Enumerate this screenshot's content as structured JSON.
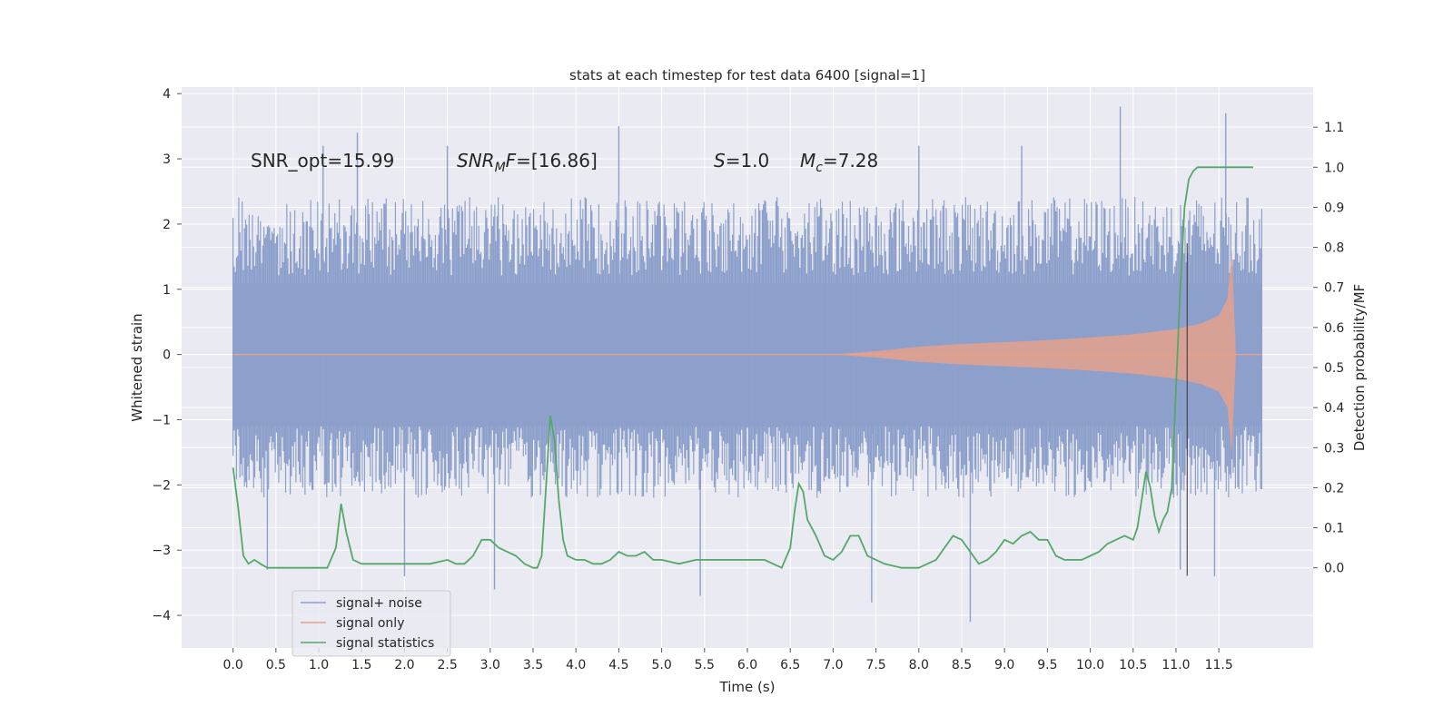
{
  "chart_data": {
    "type": "line",
    "title": "stats at each timestep for test data 6400 [signal=1]",
    "xlabel": "Time (s)",
    "ylabel": "Whitened strain",
    "y2label": "Detection probability/MF",
    "xlim": [
      -0.6,
      12.6
    ],
    "ylim": [
      -4.5,
      4.1
    ],
    "y2lim": [
      -0.2,
      1.2
    ],
    "x_ticks": [
      0.0,
      0.5,
      1.0,
      1.5,
      2.0,
      2.5,
      3.0,
      3.5,
      4.0,
      4.5,
      5.0,
      5.5,
      6.0,
      6.5,
      7.0,
      7.5,
      8.0,
      8.5,
      9.0,
      9.5,
      10.0,
      10.5,
      11.0,
      11.5
    ],
    "x_tick_labels": [
      "0.0",
      "0.5",
      "1.0",
      "1.5",
      "2.0",
      "2.5",
      "3.0",
      "3.5",
      "4.0",
      "4.5",
      "5.0",
      "5.5",
      "6.0",
      "6.5",
      "7.0",
      "7.5",
      "8.0",
      "8.5",
      "9.0",
      "9.5",
      "10.0",
      "10.5",
      "11.0",
      "11.5"
    ],
    "y_ticks": [
      -4,
      -3,
      -2,
      -1,
      0,
      1,
      2,
      3,
      4
    ],
    "y_tick_labels": [
      "−4",
      "−3",
      "−2",
      "−1",
      "0",
      "1",
      "2",
      "3",
      "4"
    ],
    "y2_ticks": [
      0.0,
      0.1,
      0.2,
      0.3,
      0.4,
      0.5,
      0.6,
      0.7,
      0.8,
      0.9,
      1.0,
      1.1
    ],
    "y2_tick_labels": [
      "0.0",
      "0.1",
      "0.2",
      "0.3",
      "0.4",
      "0.5",
      "0.6",
      "0.7",
      "0.8",
      "0.9",
      "1.0",
      "1.1"
    ],
    "grid": true,
    "legend_position": "lower-left",
    "vline_x": 11.13,
    "annotations": {
      "snr_opt": "SNR_opt=15.99",
      "snr_mf_sym": "SNR",
      "snr_mf_sub": "M",
      "snr_mf_sym2": "F",
      "snr_mf_val": "=[16.86]",
      "s_sym": "S",
      "s_val": "=1.0",
      "mc_sym": "M",
      "mc_sub": "c",
      "mc_val": "=7.28"
    },
    "series": [
      {
        "name": "signal+ noise",
        "color": "#8da0cb",
        "axis": "left",
        "kind": "noise",
        "x_range": [
          0.0,
          12.0
        ],
        "band_envelope": {
          "x": [
            0.0,
            3.0,
            6.0,
            9.0,
            12.0
          ],
          "upper": [
            2.2,
            2.2,
            2.2,
            2.2,
            2.2
          ],
          "lower": [
            -2.0,
            -2.0,
            -2.0,
            -2.0,
            -2.0
          ]
        },
        "spikes": [
          {
            "x": 0.4,
            "y": -3.3
          },
          {
            "x": 1.05,
            "y": 3.2
          },
          {
            "x": 1.45,
            "y": 3.4
          },
          {
            "x": 2.0,
            "y": -3.4
          },
          {
            "x": 2.5,
            "y": 3.2
          },
          {
            "x": 3.05,
            "y": -3.6
          },
          {
            "x": 4.5,
            "y": 3.5
          },
          {
            "x": 5.45,
            "y": -3.7
          },
          {
            "x": 7.45,
            "y": -3.8
          },
          {
            "x": 8.0,
            "y": 3.2
          },
          {
            "x": 8.6,
            "y": -4.1
          },
          {
            "x": 9.2,
            "y": 3.2
          },
          {
            "x": 10.35,
            "y": 3.8
          },
          {
            "x": 11.45,
            "y": -3.4
          },
          {
            "x": 11.58,
            "y": 3.7
          },
          {
            "x": 11.05,
            "y": -3.3
          }
        ]
      },
      {
        "name": "signal only",
        "color": "#e5a18c",
        "axis": "left",
        "kind": "chirp",
        "x": [
          0.0,
          7.0,
          7.5,
          8.0,
          8.5,
          9.0,
          9.5,
          10.0,
          10.5,
          11.0,
          11.3,
          11.5,
          11.6,
          11.65,
          11.7,
          12.0
        ],
        "amplitude": [
          0.0,
          0.0,
          0.05,
          0.12,
          0.16,
          0.19,
          0.22,
          0.26,
          0.31,
          0.39,
          0.48,
          0.6,
          0.85,
          1.6,
          0.0,
          0.0
        ]
      },
      {
        "name": "signal statistics",
        "color": "#55a868",
        "axis": "right",
        "x": [
          0.0,
          0.06,
          0.12,
          0.18,
          0.25,
          0.32,
          0.4,
          0.5,
          0.7,
          0.9,
          1.1,
          1.2,
          1.26,
          1.32,
          1.4,
          1.5,
          1.7,
          1.9,
          2.1,
          2.3,
          2.5,
          2.6,
          2.7,
          2.8,
          2.9,
          3.0,
          3.1,
          3.2,
          3.3,
          3.4,
          3.5,
          3.55,
          3.6,
          3.65,
          3.7,
          3.75,
          3.8,
          3.85,
          3.9,
          4.0,
          4.1,
          4.2,
          4.3,
          4.4,
          4.5,
          4.6,
          4.7,
          4.8,
          4.9,
          5.0,
          5.2,
          5.4,
          5.6,
          5.8,
          6.0,
          6.2,
          6.4,
          6.5,
          6.55,
          6.6,
          6.65,
          6.7,
          6.8,
          6.9,
          7.0,
          7.1,
          7.2,
          7.3,
          7.4,
          7.5,
          7.6,
          7.8,
          8.0,
          8.1,
          8.2,
          8.3,
          8.4,
          8.5,
          8.6,
          8.7,
          8.8,
          8.9,
          9.0,
          9.1,
          9.2,
          9.3,
          9.4,
          9.5,
          9.6,
          9.7,
          9.8,
          9.9,
          10.0,
          10.1,
          10.2,
          10.3,
          10.4,
          10.5,
          10.55,
          10.6,
          10.65,
          10.7,
          10.75,
          10.8,
          10.85,
          10.9,
          10.95,
          11.0,
          11.05,
          11.1,
          11.15,
          11.2,
          11.25,
          11.3,
          11.35,
          11.4,
          11.5,
          11.6,
          11.7,
          11.8,
          11.9
        ],
        "y": [
          0.25,
          0.15,
          0.03,
          0.01,
          0.02,
          0.01,
          0.0,
          0.0,
          0.0,
          0.0,
          0.0,
          0.05,
          0.16,
          0.09,
          0.02,
          0.01,
          0.01,
          0.01,
          0.01,
          0.01,
          0.02,
          0.01,
          0.01,
          0.03,
          0.07,
          0.07,
          0.05,
          0.04,
          0.03,
          0.01,
          0.0,
          0.0,
          0.03,
          0.2,
          0.38,
          0.32,
          0.17,
          0.07,
          0.03,
          0.02,
          0.02,
          0.01,
          0.01,
          0.02,
          0.04,
          0.03,
          0.03,
          0.04,
          0.02,
          0.02,
          0.01,
          0.02,
          0.02,
          0.02,
          0.02,
          0.02,
          0.0,
          0.05,
          0.14,
          0.21,
          0.19,
          0.12,
          0.08,
          0.03,
          0.02,
          0.04,
          0.08,
          0.08,
          0.03,
          0.02,
          0.01,
          0.0,
          0.0,
          0.01,
          0.02,
          0.05,
          0.08,
          0.07,
          0.04,
          0.01,
          0.02,
          0.04,
          0.07,
          0.06,
          0.08,
          0.09,
          0.07,
          0.07,
          0.03,
          0.02,
          0.02,
          0.02,
          0.03,
          0.04,
          0.06,
          0.07,
          0.08,
          0.07,
          0.1,
          0.17,
          0.24,
          0.2,
          0.13,
          0.09,
          0.12,
          0.14,
          0.2,
          0.45,
          0.7,
          0.9,
          0.97,
          0.99,
          1.0,
          1.0,
          1.0,
          1.0,
          1.0,
          1.0,
          1.0,
          1.0,
          1.0
        ]
      }
    ]
  }
}
